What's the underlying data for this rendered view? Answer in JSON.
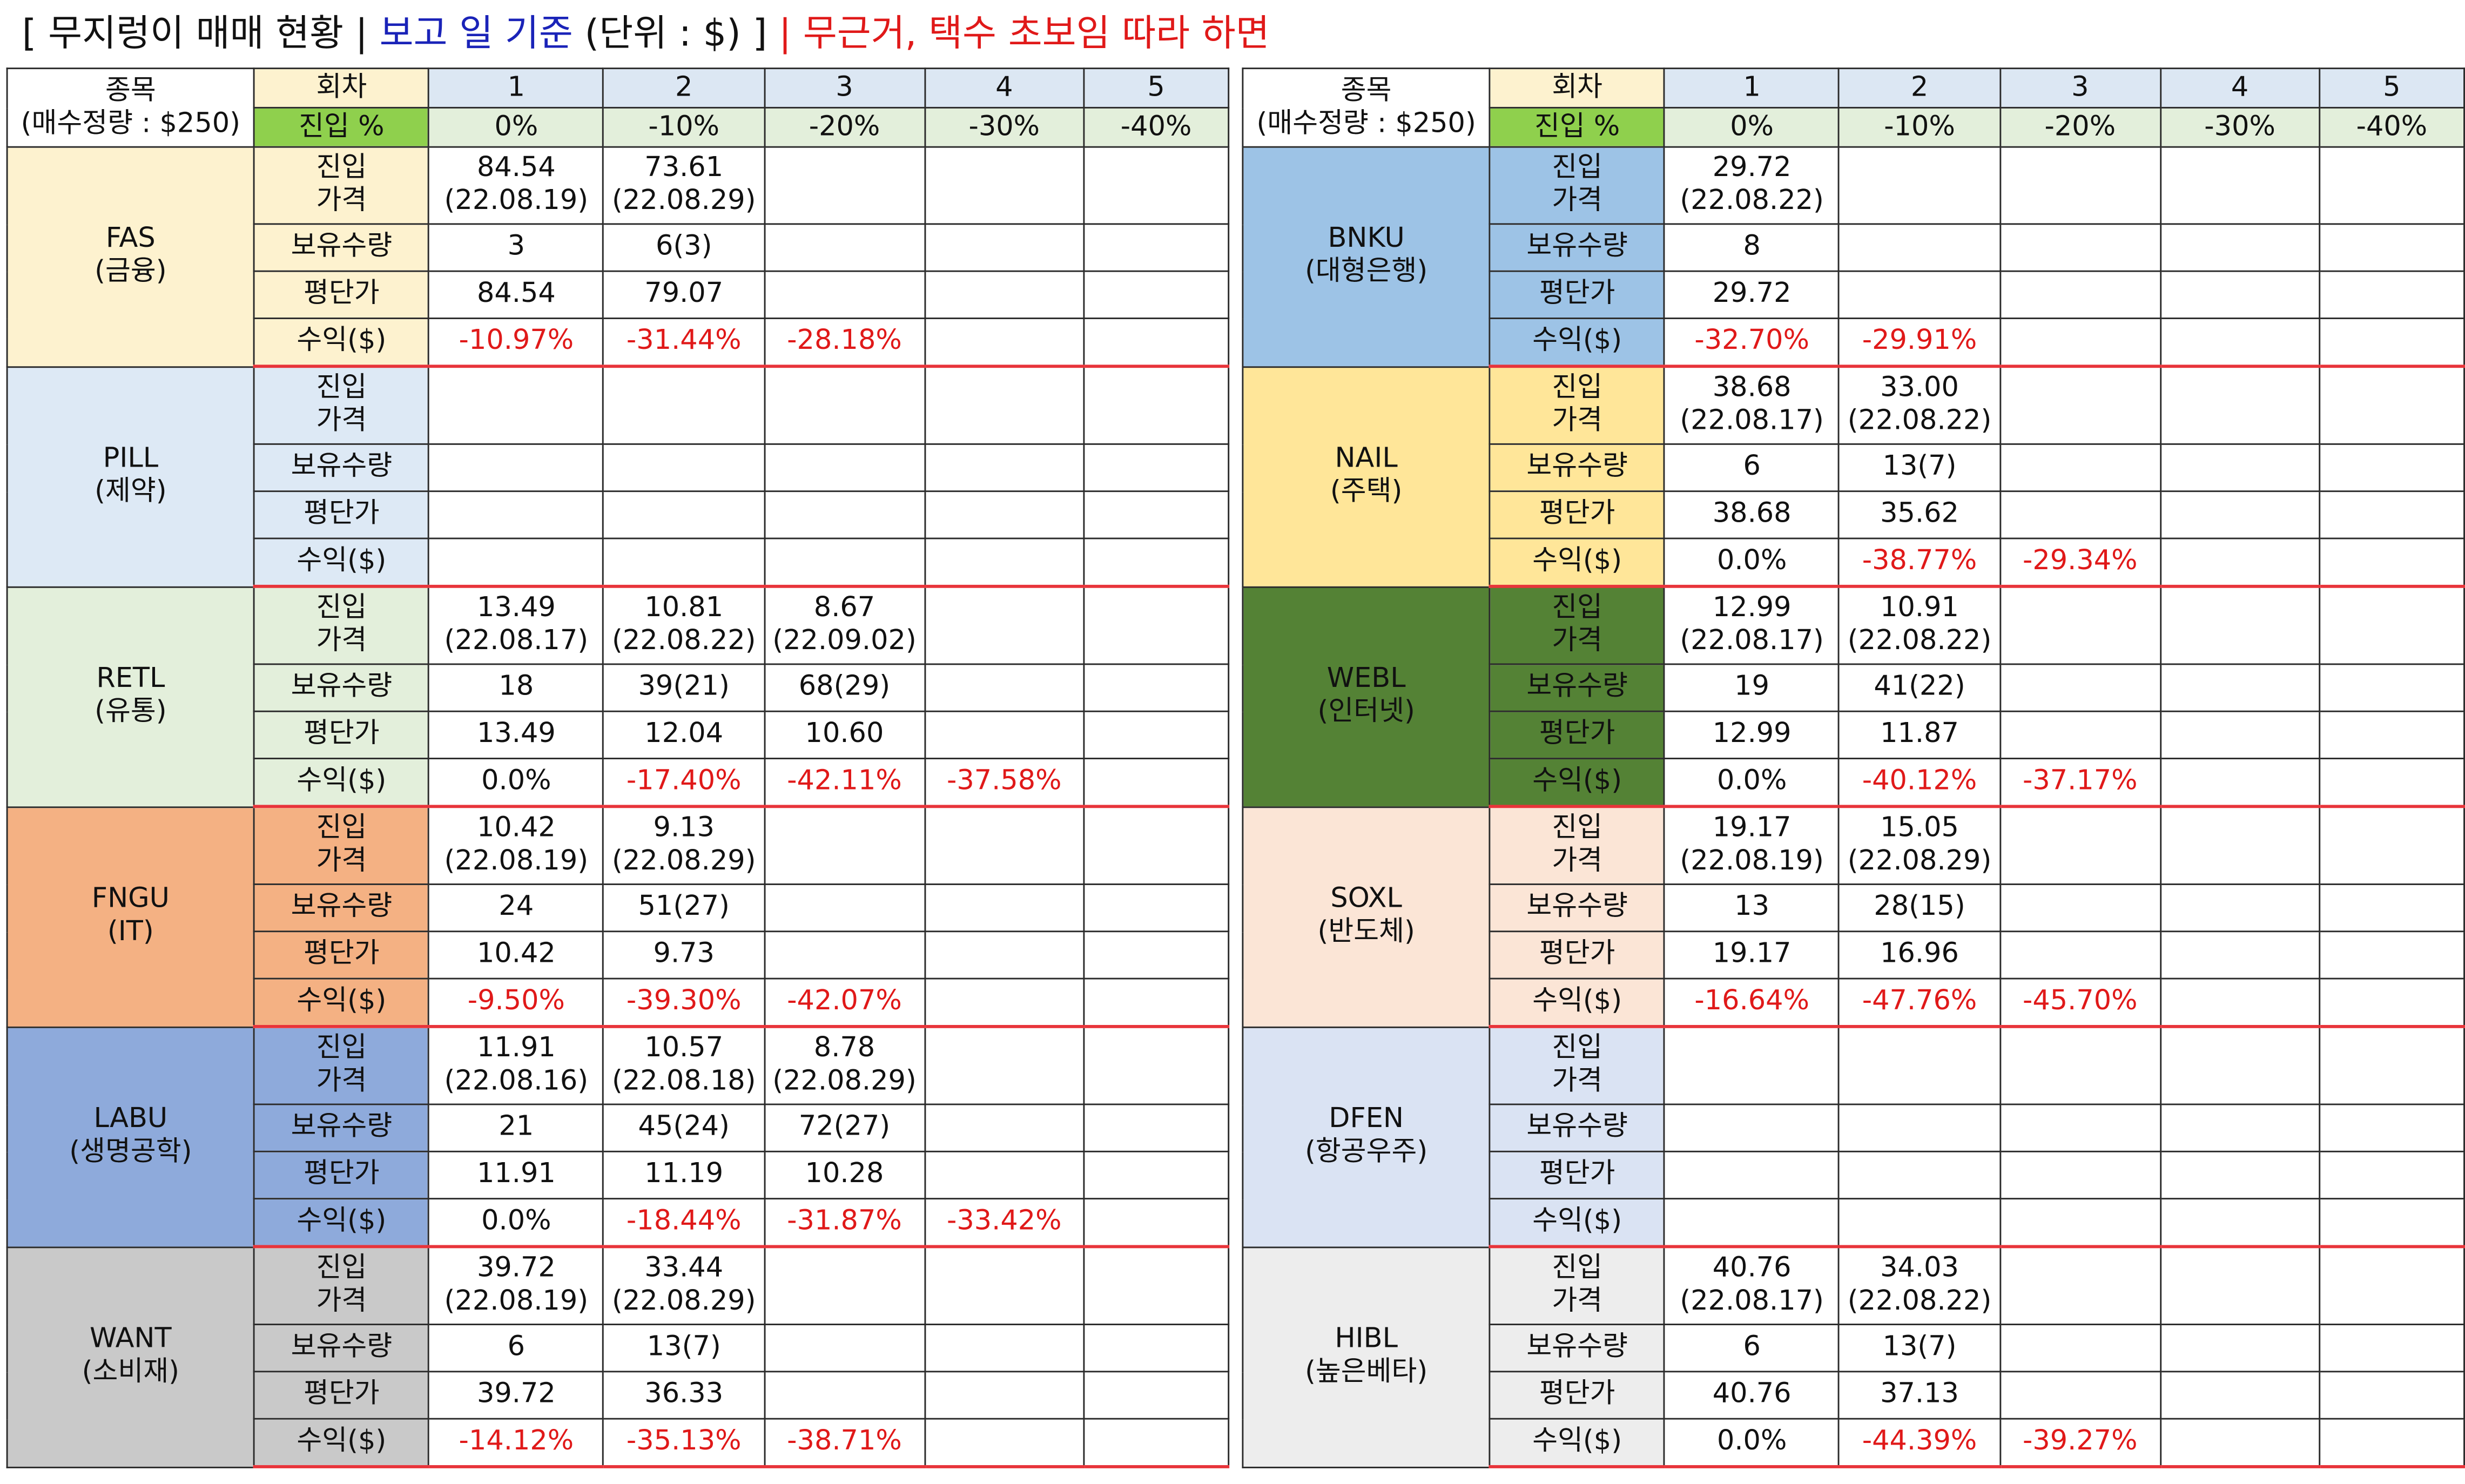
{
  "title": {
    "part1": "[ 무지렁이 매매 현황 | ",
    "part2": "보고 일 기준",
    "part3": " (단위 : $) ] ",
    "part4": "| 무근거, 택수 초보임 따라 하면"
  },
  "header": {
    "stock_label": "종목",
    "stock_sub": "(매수정량 : $250)",
    "round_label": "회차",
    "entry_pct_label": "진입 %",
    "rounds": [
      "1",
      "2",
      "3",
      "4",
      "5"
    ],
    "pcts": [
      "0%",
      "-10%",
      "-20%",
      "-30%",
      "-40%"
    ]
  },
  "row_labels": {
    "entry_line1": "진입",
    "entry_line2": "가격",
    "qty": "보유수량",
    "avg": "평단가",
    "ret": "수익($)"
  },
  "colors": {
    "red_text": "#e01919",
    "blue_text": "#1a23b8",
    "separator": "#e8343a"
  },
  "left": [
    {
      "ticker": "FAS",
      "sector": "(금융)",
      "color": "#fdf2cf",
      "entry": [
        [
          "84.54",
          "(22.08.19)"
        ],
        [
          "73.61",
          "(22.08.29)"
        ],
        [
          "",
          ""
        ],
        [
          "",
          ""
        ],
        [
          "",
          ""
        ]
      ],
      "qty": [
        "3",
        "6(3)",
        "",
        "",
        ""
      ],
      "avg": [
        "84.54",
        "79.07",
        "",
        "",
        ""
      ],
      "ret": [
        "-10.97%",
        "-31.44%",
        "-28.18%",
        "",
        ""
      ]
    },
    {
      "ticker": "PILL",
      "sector": "(제약)",
      "color": "#dde9f5",
      "entry": [
        [
          "",
          ""
        ],
        [
          "",
          ""
        ],
        [
          "",
          ""
        ],
        [
          "",
          ""
        ],
        [
          "",
          ""
        ]
      ],
      "qty": [
        "",
        "",
        "",
        "",
        ""
      ],
      "avg": [
        "",
        "",
        "",
        "",
        ""
      ],
      "ret": [
        "",
        "",
        "",
        "",
        ""
      ]
    },
    {
      "ticker": "RETL",
      "sector": "(유통)",
      "color": "#e3efdb",
      "entry": [
        [
          "13.49",
          "(22.08.17)"
        ],
        [
          "10.81",
          "(22.08.22)"
        ],
        [
          "8.67",
          "(22.09.02)"
        ],
        [
          "",
          ""
        ],
        [
          "",
          ""
        ]
      ],
      "qty": [
        "18",
        "39(21)",
        "68(29)",
        "",
        ""
      ],
      "avg": [
        "13.49",
        "12.04",
        "10.60",
        "",
        ""
      ],
      "ret": [
        "0.0%",
        "-17.40%",
        "-42.11%",
        "-37.58%",
        ""
      ]
    },
    {
      "ticker": "FNGU",
      "sector": "(IT)",
      "color": "#f4b183",
      "entry": [
        [
          "10.42",
          "(22.08.19)"
        ],
        [
          "9.13",
          "(22.08.29)"
        ],
        [
          "",
          ""
        ],
        [
          "",
          ""
        ],
        [
          "",
          ""
        ]
      ],
      "qty": [
        "24",
        "51(27)",
        "",
        "",
        ""
      ],
      "avg": [
        "10.42",
        "9.73",
        "",
        "",
        ""
      ],
      "ret": [
        "-9.50%",
        "-39.30%",
        "-42.07%",
        "",
        ""
      ]
    },
    {
      "ticker": "LABU",
      "sector": "(생명공학)",
      "color": "#8eaadb",
      "entry": [
        [
          "11.91",
          "(22.08.16)"
        ],
        [
          "10.57",
          "(22.08.18)"
        ],
        [
          "8.78",
          "(22.08.29)"
        ],
        [
          "",
          ""
        ],
        [
          "",
          ""
        ]
      ],
      "qty": [
        "21",
        "45(24)",
        "72(27)",
        "",
        ""
      ],
      "avg": [
        "11.91",
        "11.19",
        "10.28",
        "",
        ""
      ],
      "ret": [
        "0.0%",
        "-18.44%",
        "-31.87%",
        "-33.42%",
        ""
      ]
    },
    {
      "ticker": "WANT",
      "sector": "(소비재)",
      "color": "#c9c9c9",
      "entry": [
        [
          "39.72",
          "(22.08.19)"
        ],
        [
          "33.44",
          "(22.08.29)"
        ],
        [
          "",
          ""
        ],
        [
          "",
          ""
        ],
        [
          "",
          ""
        ]
      ],
      "qty": [
        "6",
        "13(7)",
        "",
        "",
        ""
      ],
      "avg": [
        "39.72",
        "36.33",
        "",
        "",
        ""
      ],
      "ret": [
        "-14.12%",
        "-35.13%",
        "-38.71%",
        "",
        ""
      ]
    }
  ],
  "right": [
    {
      "ticker": "BNKU",
      "sector": "(대형은행)",
      "color": "#9dc3e6",
      "entry": [
        [
          "29.72",
          "(22.08.22)"
        ],
        [
          "",
          ""
        ],
        [
          "",
          ""
        ],
        [
          "",
          ""
        ],
        [
          "",
          ""
        ]
      ],
      "qty": [
        "8",
        "",
        "",
        "",
        ""
      ],
      "avg": [
        "29.72",
        "",
        "",
        "",
        ""
      ],
      "ret": [
        "-32.70%",
        "-29.91%",
        "",
        "",
        ""
      ]
    },
    {
      "ticker": "NAIL",
      "sector": "(주택)",
      "color": "#ffe699",
      "entry": [
        [
          "38.68",
          "(22.08.17)"
        ],
        [
          "33.00",
          "(22.08.22)"
        ],
        [
          "",
          ""
        ],
        [
          "",
          ""
        ],
        [
          "",
          ""
        ]
      ],
      "qty": [
        "6",
        "13(7)",
        "",
        "",
        ""
      ],
      "avg": [
        "38.68",
        "35.62",
        "",
        "",
        ""
      ],
      "ret": [
        "0.0%",
        "-38.77%",
        "-29.34%",
        "",
        ""
      ]
    },
    {
      "ticker": "WEBL",
      "sector": "(인터넷)",
      "color": "#548235",
      "entry": [
        [
          "12.99",
          "(22.08.17)"
        ],
        [
          "10.91",
          "(22.08.22)"
        ],
        [
          "",
          ""
        ],
        [
          "",
          ""
        ],
        [
          "",
          ""
        ]
      ],
      "qty": [
        "19",
        "41(22)",
        "",
        "",
        ""
      ],
      "avg": [
        "12.99",
        "11.87",
        "",
        "",
        ""
      ],
      "ret": [
        "0.0%",
        "-40.12%",
        "-37.17%",
        "",
        ""
      ]
    },
    {
      "ticker": "SOXL",
      "sector": "(반도체)",
      "color": "#fbe5d6",
      "entry": [
        [
          "19.17",
          "(22.08.19)"
        ],
        [
          "15.05",
          "(22.08.29)"
        ],
        [
          "",
          ""
        ],
        [
          "",
          ""
        ],
        [
          "",
          ""
        ]
      ],
      "qty": [
        "13",
        "28(15)",
        "",
        "",
        ""
      ],
      "avg": [
        "19.17",
        "16.96",
        "",
        "",
        ""
      ],
      "ret": [
        "-16.64%",
        "-47.76%",
        "-45.70%",
        "",
        ""
      ]
    },
    {
      "ticker": "DFEN",
      "sector": "(항공우주)",
      "color": "#dae3f3",
      "entry": [
        [
          "",
          ""
        ],
        [
          "",
          ""
        ],
        [
          "",
          ""
        ],
        [
          "",
          ""
        ],
        [
          "",
          ""
        ]
      ],
      "qty": [
        "",
        "",
        "",
        "",
        ""
      ],
      "avg": [
        "",
        "",
        "",
        "",
        ""
      ],
      "ret": [
        "",
        "",
        "",
        "",
        ""
      ]
    },
    {
      "ticker": "HIBL",
      "sector": "(높은베타)",
      "color": "#ededed",
      "entry": [
        [
          "40.76",
          "(22.08.17)"
        ],
        [
          "34.03",
          "(22.08.22)"
        ],
        [
          "",
          ""
        ],
        [
          "",
          ""
        ],
        [
          "",
          ""
        ]
      ],
      "qty": [
        "6",
        "13(7)",
        "",
        "",
        ""
      ],
      "avg": [
        "40.76",
        "37.13",
        "",
        "",
        ""
      ],
      "ret": [
        "0.0%",
        "-44.39%",
        "-39.27%",
        "",
        ""
      ]
    }
  ]
}
